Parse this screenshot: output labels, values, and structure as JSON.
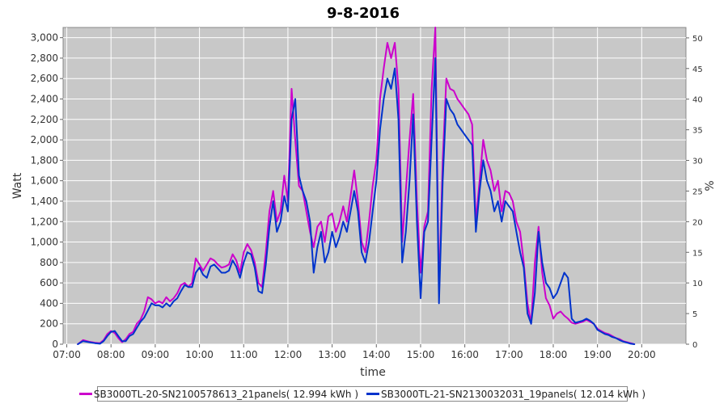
{
  "chart_data": {
    "type": "line",
    "title": "9-8-2016",
    "xlabel": "time",
    "ylabel": "Watt",
    "y2label": "%",
    "x_ticks": [
      "07:00",
      "08:00",
      "09:00",
      "10:00",
      "11:00",
      "12:00",
      "13:00",
      "14:00",
      "15:00",
      "16:00",
      "17:00",
      "18:00",
      "19:00",
      "20:00"
    ],
    "xlim": [
      "06:55",
      "21:00"
    ],
    "ylim": [
      0,
      3100
    ],
    "y_ticks": [
      "0",
      "200",
      "400",
      "600",
      "800",
      "1,000",
      "1,200",
      "1,400",
      "1,600",
      "1,800",
      "2,000",
      "2,200",
      "2,400",
      "2,600",
      "2,800",
      "3,000"
    ],
    "y2lim": [
      0,
      51.7
    ],
    "y2_ticks": [
      "0",
      "5",
      "10",
      "15",
      "20",
      "25",
      "30",
      "35",
      "40",
      "45",
      "50"
    ],
    "grid": true,
    "legend_position": "bottom",
    "series": [
      {
        "name": "SB3000TL-20-SN2100578613_21panels( 12.994 kWh )",
        "color": "#cc00cc",
        "points": [
          [
            "07:15",
            0
          ],
          [
            "07:22",
            40
          ],
          [
            "07:30",
            25
          ],
          [
            "07:38",
            15
          ],
          [
            "07:45",
            10
          ],
          [
            "07:50",
            40
          ],
          [
            "07:55",
            100
          ],
          [
            "08:00",
            130
          ],
          [
            "08:05",
            110
          ],
          [
            "08:10",
            60
          ],
          [
            "08:15",
            20
          ],
          [
            "08:20",
            50
          ],
          [
            "08:25",
            100
          ],
          [
            "08:30",
            120
          ],
          [
            "08:35",
            200
          ],
          [
            "08:40",
            240
          ],
          [
            "08:45",
            320
          ],
          [
            "08:50",
            460
          ],
          [
            "08:55",
            440
          ],
          [
            "09:00",
            400
          ],
          [
            "09:05",
            420
          ],
          [
            "09:10",
            400
          ],
          [
            "09:15",
            460
          ],
          [
            "09:20",
            420
          ],
          [
            "09:25",
            450
          ],
          [
            "09:30",
            500
          ],
          [
            "09:35",
            580
          ],
          [
            "09:40",
            600
          ],
          [
            "09:45",
            560
          ],
          [
            "09:50",
            600
          ],
          [
            "09:55",
            840
          ],
          [
            "10:00",
            780
          ],
          [
            "10:05",
            720
          ],
          [
            "10:10",
            780
          ],
          [
            "10:15",
            840
          ],
          [
            "10:20",
            820
          ],
          [
            "10:25",
            780
          ],
          [
            "10:30",
            750
          ],
          [
            "10:35",
            760
          ],
          [
            "10:40",
            780
          ],
          [
            "10:45",
            880
          ],
          [
            "10:50",
            820
          ],
          [
            "10:55",
            700
          ],
          [
            "11:00",
            900
          ],
          [
            "11:05",
            980
          ],
          [
            "11:10",
            920
          ],
          [
            "11:15",
            800
          ],
          [
            "11:20",
            600
          ],
          [
            "11:25",
            560
          ],
          [
            "11:30",
            900
          ],
          [
            "11:35",
            1300
          ],
          [
            "11:40",
            1500
          ],
          [
            "11:45",
            1200
          ],
          [
            "11:50",
            1300
          ],
          [
            "11:55",
            1650
          ],
          [
            "12:00",
            1400
          ],
          [
            "12:05",
            2500
          ],
          [
            "12:10",
            2000
          ],
          [
            "12:15",
            1550
          ],
          [
            "12:20",
            1500
          ],
          [
            "12:25",
            1300
          ],
          [
            "12:30",
            1100
          ],
          [
            "12:35",
            950
          ],
          [
            "12:40",
            1150
          ],
          [
            "12:45",
            1200
          ],
          [
            "12:50",
            1000
          ],
          [
            "12:55",
            1250
          ],
          [
            "13:00",
            1280
          ],
          [
            "13:05",
            1100
          ],
          [
            "13:10",
            1200
          ],
          [
            "13:15",
            1350
          ],
          [
            "13:20",
            1200
          ],
          [
            "13:25",
            1450
          ],
          [
            "13:30",
            1700
          ],
          [
            "13:35",
            1400
          ],
          [
            "13:40",
            1000
          ],
          [
            "13:45",
            900
          ],
          [
            "13:50",
            1200
          ],
          [
            "13:55",
            1550
          ],
          [
            "14:00",
            1800
          ],
          [
            "14:05",
            2400
          ],
          [
            "14:10",
            2700
          ],
          [
            "14:15",
            2950
          ],
          [
            "14:20",
            2800
          ],
          [
            "14:25",
            2950
          ],
          [
            "14:30",
            2500
          ],
          [
            "14:35",
            1000
          ],
          [
            "14:40",
            1500
          ],
          [
            "14:45",
            2000
          ],
          [
            "14:50",
            2450
          ],
          [
            "14:55",
            1400
          ],
          [
            "15:00",
            700
          ],
          [
            "15:05",
            1150
          ],
          [
            "15:10",
            1300
          ],
          [
            "15:15",
            2500
          ],
          [
            "15:20",
            3100
          ],
          [
            "15:25",
            500
          ],
          [
            "15:30",
            1800
          ],
          [
            "15:35",
            2600
          ],
          [
            "15:40",
            2500
          ],
          [
            "15:45",
            2480
          ],
          [
            "15:50",
            2400
          ],
          [
            "15:55",
            2350
          ],
          [
            "16:00",
            2300
          ],
          [
            "16:05",
            2250
          ],
          [
            "16:10",
            2150
          ],
          [
            "16:15",
            1200
          ],
          [
            "16:20",
            1600
          ],
          [
            "16:25",
            2000
          ],
          [
            "16:30",
            1800
          ],
          [
            "16:35",
            1700
          ],
          [
            "16:40",
            1500
          ],
          [
            "16:45",
            1600
          ],
          [
            "16:50",
            1300
          ],
          [
            "16:55",
            1500
          ],
          [
            "17:00",
            1480
          ],
          [
            "17:05",
            1400
          ],
          [
            "17:10",
            1200
          ],
          [
            "17:15",
            1100
          ],
          [
            "17:20",
            800
          ],
          [
            "17:25",
            400
          ],
          [
            "17:30",
            200
          ],
          [
            "17:35",
            800
          ],
          [
            "17:40",
            1150
          ],
          [
            "17:45",
            700
          ],
          [
            "17:50",
            450
          ],
          [
            "17:55",
            380
          ],
          [
            "18:00",
            250
          ],
          [
            "18:05",
            300
          ],
          [
            "18:10",
            320
          ],
          [
            "18:15",
            280
          ],
          [
            "18:20",
            250
          ],
          [
            "18:25",
            210
          ],
          [
            "18:30",
            200
          ],
          [
            "18:35",
            210
          ],
          [
            "18:40",
            220
          ],
          [
            "18:45",
            240
          ],
          [
            "18:50",
            220
          ],
          [
            "18:55",
            200
          ],
          [
            "19:00",
            150
          ],
          [
            "19:05",
            130
          ],
          [
            "19:10",
            110
          ],
          [
            "19:15",
            100
          ],
          [
            "19:20",
            80
          ],
          [
            "19:25",
            60
          ],
          [
            "19:30",
            50
          ],
          [
            "19:35",
            30
          ],
          [
            "19:40",
            20
          ],
          [
            "19:45",
            10
          ],
          [
            "19:50",
            0
          ]
        ]
      },
      {
        "name": "SB3000TL-21-SN2130032031_19panels( 12.014 kWh )",
        "color": "#0033cc",
        "points": [
          [
            "07:15",
            0
          ],
          [
            "07:22",
            30
          ],
          [
            "07:30",
            20
          ],
          [
            "07:38",
            10
          ],
          [
            "07:45",
            5
          ],
          [
            "07:50",
            30
          ],
          [
            "07:55",
            80
          ],
          [
            "08:00",
            120
          ],
          [
            "08:05",
            130
          ],
          [
            "08:10",
            80
          ],
          [
            "08:15",
            30
          ],
          [
            "08:20",
            30
          ],
          [
            "08:25",
            80
          ],
          [
            "08:30",
            100
          ],
          [
            "08:35",
            160
          ],
          [
            "08:40",
            220
          ],
          [
            "08:45",
            260
          ],
          [
            "08:50",
            330
          ],
          [
            "08:55",
            400
          ],
          [
            "09:00",
            380
          ],
          [
            "09:05",
            380
          ],
          [
            "09:10",
            360
          ],
          [
            "09:15",
            400
          ],
          [
            "09:20",
            370
          ],
          [
            "09:25",
            420
          ],
          [
            "09:30",
            450
          ],
          [
            "09:35",
            520
          ],
          [
            "09:40",
            580
          ],
          [
            "09:45",
            560
          ],
          [
            "09:50",
            560
          ],
          [
            "09:55",
            700
          ],
          [
            "10:00",
            750
          ],
          [
            "10:05",
            680
          ],
          [
            "10:10",
            650
          ],
          [
            "10:15",
            760
          ],
          [
            "10:20",
            780
          ],
          [
            "10:25",
            740
          ],
          [
            "10:30",
            700
          ],
          [
            "10:35",
            700
          ],
          [
            "10:40",
            720
          ],
          [
            "10:45",
            820
          ],
          [
            "10:50",
            760
          ],
          [
            "10:55",
            650
          ],
          [
            "11:00",
            800
          ],
          [
            "11:05",
            900
          ],
          [
            "11:10",
            880
          ],
          [
            "11:15",
            750
          ],
          [
            "11:20",
            520
          ],
          [
            "11:25",
            500
          ],
          [
            "11:30",
            780
          ],
          [
            "11:35",
            1150
          ],
          [
            "11:40",
            1400
          ],
          [
            "11:45",
            1100
          ],
          [
            "11:50",
            1200
          ],
          [
            "11:55",
            1450
          ],
          [
            "12:00",
            1300
          ],
          [
            "12:05",
            2200
          ],
          [
            "12:10",
            2400
          ],
          [
            "12:15",
            1650
          ],
          [
            "12:20",
            1500
          ],
          [
            "12:25",
            1400
          ],
          [
            "12:30",
            1200
          ],
          [
            "12:35",
            700
          ],
          [
            "12:40",
            950
          ],
          [
            "12:45",
            1100
          ],
          [
            "12:50",
            800
          ],
          [
            "12:55",
            900
          ],
          [
            "13:00",
            1100
          ],
          [
            "13:05",
            950
          ],
          [
            "13:10",
            1050
          ],
          [
            "13:15",
            1200
          ],
          [
            "13:20",
            1100
          ],
          [
            "13:25",
            1300
          ],
          [
            "13:30",
            1500
          ],
          [
            "13:35",
            1300
          ],
          [
            "13:40",
            900
          ],
          [
            "13:45",
            800
          ],
          [
            "13:50",
            1000
          ],
          [
            "13:55",
            1300
          ],
          [
            "14:00",
            1600
          ],
          [
            "14:05",
            2100
          ],
          [
            "14:10",
            2400
          ],
          [
            "14:15",
            2600
          ],
          [
            "14:20",
            2500
          ],
          [
            "14:25",
            2700
          ],
          [
            "14:30",
            2200
          ],
          [
            "14:35",
            800
          ],
          [
            "14:40",
            1100
          ],
          [
            "14:45",
            1600
          ],
          [
            "14:50",
            2250
          ],
          [
            "14:55",
            1200
          ],
          [
            "15:00",
            450
          ],
          [
            "15:05",
            1100
          ],
          [
            "15:10",
            1200
          ],
          [
            "15:15",
            2000
          ],
          [
            "15:20",
            2800
          ],
          [
            "15:25",
            400
          ],
          [
            "15:30",
            1600
          ],
          [
            "15:35",
            2400
          ],
          [
            "15:40",
            2300
          ],
          [
            "15:45",
            2250
          ],
          [
            "15:50",
            2150
          ],
          [
            "15:55",
            2100
          ],
          [
            "16:00",
            2050
          ],
          [
            "16:05",
            2000
          ],
          [
            "16:10",
            1950
          ],
          [
            "16:15",
            1100
          ],
          [
            "16:20",
            1500
          ],
          [
            "16:25",
            1800
          ],
          [
            "16:30",
            1600
          ],
          [
            "16:35",
            1500
          ],
          [
            "16:40",
            1300
          ],
          [
            "16:45",
            1400
          ],
          [
            "16:50",
            1200
          ],
          [
            "16:55",
            1400
          ],
          [
            "17:00",
            1350
          ],
          [
            "17:05",
            1300
          ],
          [
            "17:10",
            1100
          ],
          [
            "17:15",
            900
          ],
          [
            "17:20",
            750
          ],
          [
            "17:25",
            300
          ],
          [
            "17:30",
            200
          ],
          [
            "17:35",
            500
          ],
          [
            "17:40",
            1100
          ],
          [
            "17:45",
            800
          ],
          [
            "17:50",
            600
          ],
          [
            "17:55",
            550
          ],
          [
            "18:00",
            450
          ],
          [
            "18:05",
            500
          ],
          [
            "18:10",
            600
          ],
          [
            "18:15",
            700
          ],
          [
            "18:20",
            650
          ],
          [
            "18:25",
            250
          ],
          [
            "18:30",
            210
          ],
          [
            "18:35",
            220
          ],
          [
            "18:40",
            230
          ],
          [
            "18:45",
            250
          ],
          [
            "18:50",
            230
          ],
          [
            "18:55",
            200
          ],
          [
            "19:00",
            140
          ],
          [
            "19:05",
            120
          ],
          [
            "19:10",
            100
          ],
          [
            "19:15",
            90
          ],
          [
            "19:20",
            70
          ],
          [
            "19:25",
            60
          ],
          [
            "19:30",
            40
          ],
          [
            "19:35",
            25
          ],
          [
            "19:40",
            15
          ],
          [
            "19:45",
            5
          ],
          [
            "19:50",
            0
          ]
        ]
      }
    ]
  }
}
